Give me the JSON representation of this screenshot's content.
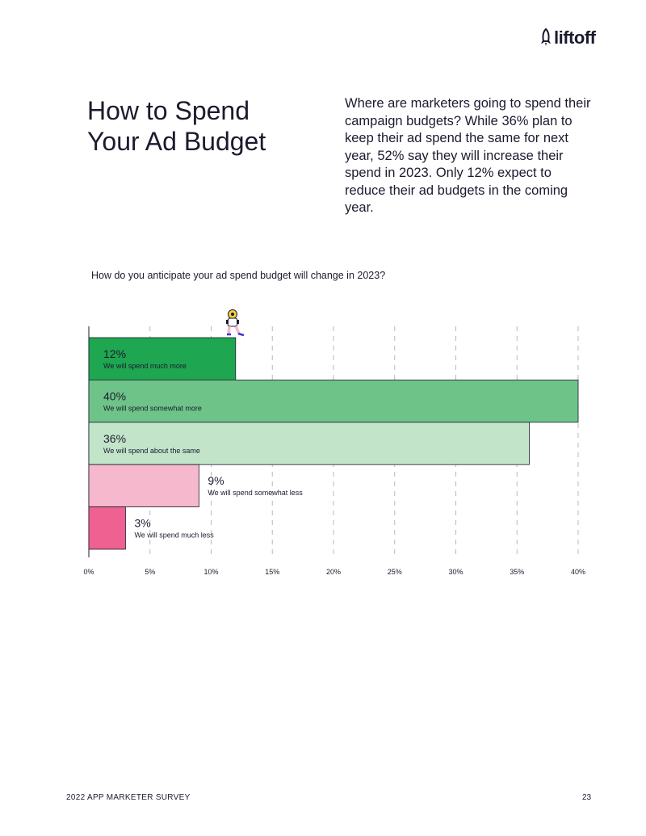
{
  "brand": {
    "logo_text": "liftoff"
  },
  "page": {
    "title_lines": [
      "How to Spend",
      "Your Ad Budget"
    ],
    "intro": "Where are marketers going to spend their campaign budgets? While 36% plan to keep their ad spend the same for next year, 52% say they will increase their spend in 2023. Only 12% expect to reduce their ad budgets in the coming year.",
    "footer_left": "2022 APP MARKETER SURVEY",
    "page_number": "23"
  },
  "colors": {
    "much_more": "#1fa650",
    "somewhat_more": "#6ec488",
    "same": "#c2e5c9",
    "somewhat_less": "#f5b8cc",
    "much_less": "#ee6190",
    "ink": "#1b1b2f"
  },
  "chart_data": {
    "type": "bar",
    "orientation": "horizontal",
    "title": "How do you anticipate your ad spend budget will change in 2023?",
    "categories": [
      "We will spend much more",
      "We will spend somewhat more",
      "We will spend about the same",
      "We will spend somewhat less",
      "We will spend much less"
    ],
    "values": [
      12,
      40,
      36,
      9,
      3
    ],
    "value_labels": [
      "12%",
      "40%",
      "36%",
      "9%",
      "3%"
    ],
    "xlim": [
      0,
      40
    ],
    "x_ticks": [
      0,
      5,
      10,
      15,
      20,
      25,
      30,
      35,
      40
    ],
    "x_tick_labels": [
      "0%",
      "5%",
      "10%",
      "15%",
      "20%",
      "25%",
      "30%",
      "35%",
      "40%"
    ],
    "grid": "vertical dashed",
    "legend": "none"
  }
}
